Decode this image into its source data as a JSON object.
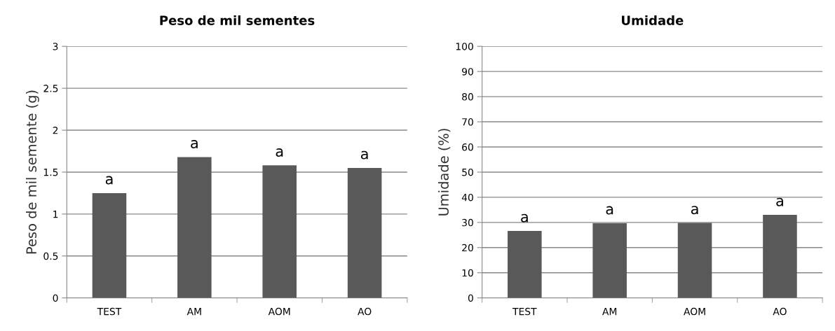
{
  "chart_data": [
    {
      "type": "bar",
      "title": "Peso de mil sementes",
      "ylabel": "Peso de mil semente (g)",
      "categories": [
        "TEST",
        "AM",
        "AOM",
        "AO"
      ],
      "values": [
        1.25,
        1.68,
        1.58,
        1.55
      ],
      "color": "#595959",
      "ylim": [
        0,
        3
      ],
      "yticks": [
        0,
        0.5,
        1,
        1.5,
        2,
        2.5,
        3
      ],
      "grid": "y",
      "annotations": [
        {
          "text": "a",
          "x": "TEST",
          "y": 1.25
        },
        {
          "text": "a",
          "x": "AM",
          "y": 1.68
        },
        {
          "text": "a",
          "x": "AOM",
          "y": 1.58
        },
        {
          "text": "a",
          "x": "AO",
          "y": 1.55
        }
      ]
    },
    {
      "type": "bar",
      "title": "Umidade",
      "ylabel": "Umidade (%)",
      "categories": [
        "TEST",
        "AM",
        "AOM",
        "AO"
      ],
      "values": [
        26.6,
        29.7,
        29.8,
        33.0
      ],
      "color": "#595959",
      "ylim": [
        0,
        100
      ],
      "yticks": [
        0,
        10,
        20,
        30,
        40,
        50,
        60,
        70,
        80,
        90,
        100
      ],
      "grid": "y",
      "annotations": [
        {
          "text": "a",
          "x": "TEST",
          "y": 26.6
        },
        {
          "text": "a",
          "x": "AM",
          "y": 29.7
        },
        {
          "text": "a",
          "x": "AOM",
          "y": 29.8
        },
        {
          "text": "a",
          "x": "AO",
          "y": 33.0
        }
      ]
    }
  ]
}
